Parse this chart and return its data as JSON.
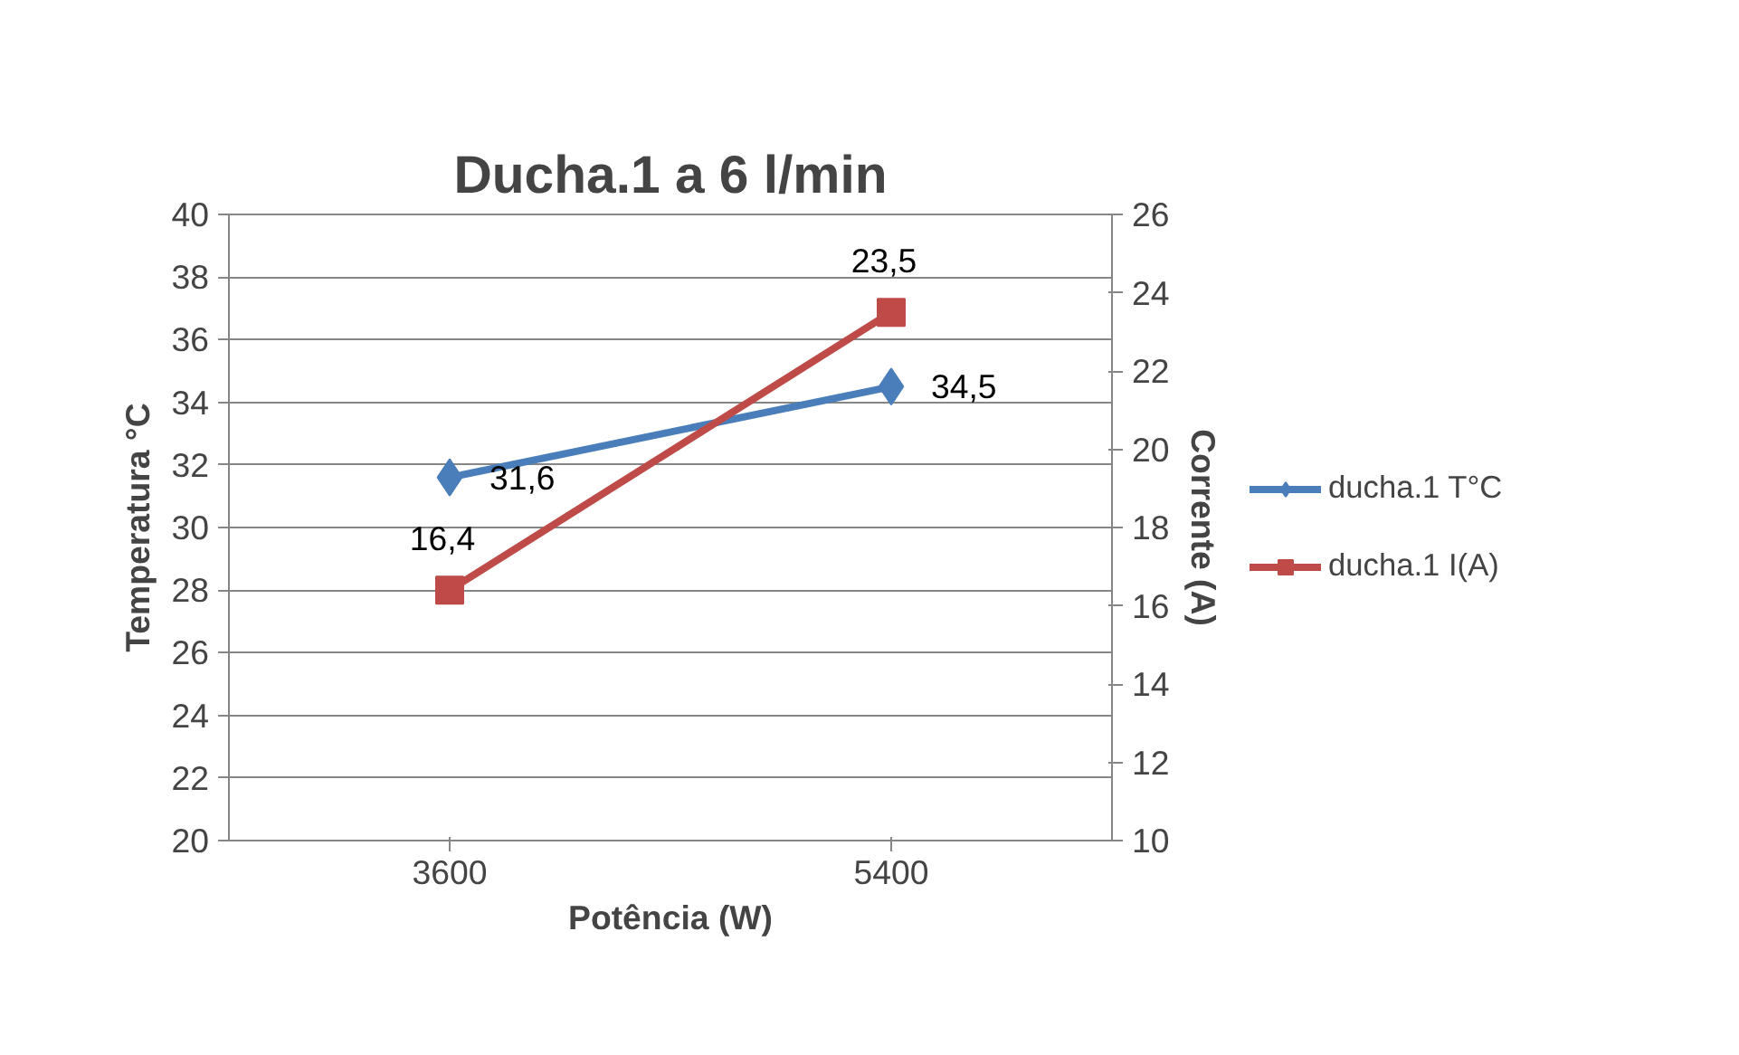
{
  "chart_data": {
    "type": "line",
    "title": "Ducha.1 a 6 l/min",
    "xlabel": "Potência (W)",
    "ylabel": "Temperatura °C",
    "y2label": "Corrente (A)",
    "categories": [
      "3600",
      "5400"
    ],
    "series": [
      {
        "name": "ducha.1 T°C",
        "color": "#4a7ebb",
        "values": [
          31.6,
          34.5
        ],
        "marker": "diamond",
        "value_labels": [
          "31,6",
          "34,5"
        ]
      },
      {
        "name": "ducha.1 I(A)",
        "color": "#be4b48",
        "values": [
          16.4,
          23.5
        ],
        "marker": "square",
        "axis": "y2",
        "value_labels": [
          "16,4",
          "23,5"
        ]
      }
    ],
    "ylim": [
      20,
      40
    ],
    "yticks": [
      20,
      22,
      24,
      26,
      28,
      30,
      32,
      34,
      36,
      38,
      40
    ],
    "y2lim": [
      10,
      26
    ],
    "y2ticks": [
      10,
      12,
      14,
      16,
      18,
      20,
      22,
      24,
      26
    ],
    "grid": "y",
    "legend": "right",
    "line_style": "solid"
  }
}
